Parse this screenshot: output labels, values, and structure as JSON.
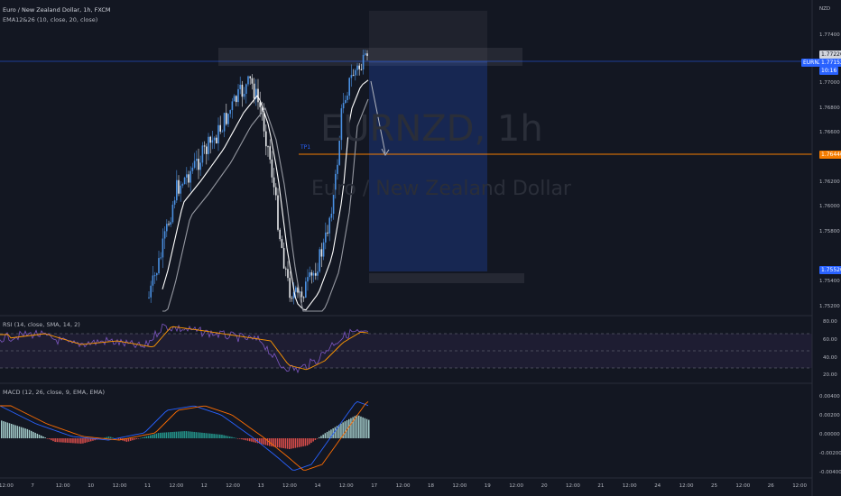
{
  "header": {
    "title": "Euro / New Zealand Dollar, 1h, FXCM",
    "indicator": "EMA12&26 (10, close, 20, close)",
    "currency": "NZD"
  },
  "watermark": {
    "symbol": "EURNZD, 1h",
    "name": "Euro / New Zealand Dollar"
  },
  "position": {
    "tp_label": "TP1"
  },
  "price_axis": {
    "ticks": [
      "1.77400",
      "1.77000",
      "1.76800",
      "1.76600",
      "1.76200",
      "1.76000",
      "1.75800",
      "1.75400",
      "1.75200"
    ],
    "tags": {
      "symbol": "EURNZD",
      "current_price": "1.77152",
      "countdown": "10:16",
      "top_price": "1.77220",
      "tp_price": "1.76440",
      "stop_price": "1.75520"
    }
  },
  "rsi_panel": {
    "label": "RSI (14, close, SMA, 14, 2)",
    "ticks": [
      "80.00",
      "60.00",
      "40.00",
      "20.00"
    ]
  },
  "macd_panel": {
    "label": "MACD (12, 26, close, 9, EMA, EMA)",
    "ticks": [
      "0.00400",
      "0.00200",
      "0.00000",
      "-0.00200",
      "-0.00400"
    ]
  },
  "time_axis": {
    "labels": [
      "12:00",
      "7",
      "12:00",
      "10",
      "12:00",
      "11",
      "12:00",
      "12",
      "12:00",
      "13",
      "12:00",
      "14",
      "12:00",
      "17",
      "12:00",
      "18",
      "12:00",
      "19",
      "12:00",
      "20",
      "12:00",
      "21",
      "12:00",
      "24",
      "12:00",
      "25",
      "12:00",
      "26",
      "12:00"
    ]
  },
  "colors": {
    "background": "#131722",
    "candle_up": "#4a90e2",
    "candle_down": "#e8eaed",
    "ema_fast": "#ffffff",
    "ema_slow": "#9598a1",
    "tp_line": "#f57c00",
    "rsi_line": "#7e57c2",
    "rsi_ma": "#ff9800",
    "macd_line": "#2962ff",
    "signal_line": "#ff6d00",
    "hist_pos": "#26a69a",
    "hist_neg": "#ef5350"
  }
}
